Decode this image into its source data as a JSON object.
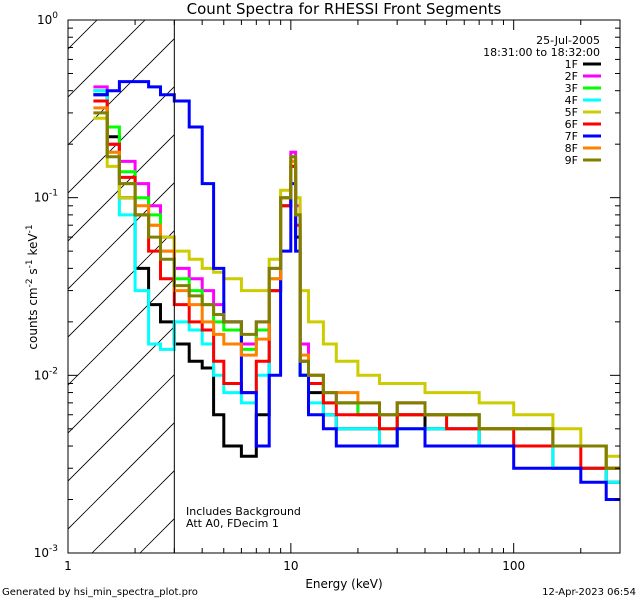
{
  "chart_data": {
    "type": "line",
    "title": "Count Spectra for RHESSI Front Segments",
    "date": "25-Jul-2005",
    "time_range": "18:31:00 to 18:32:00",
    "xlabel": "Energy (keV)",
    "ylabel_parts": {
      "a": "counts cm",
      "b": "-2",
      "c": " s",
      "d": "-1",
      "e": " keV",
      "f": "-1"
    },
    "x_scale": "log",
    "y_scale": "log",
    "xlim": [
      1,
      300
    ],
    "ylim": [
      0.001,
      1
    ],
    "x_ticks": [
      {
        "v": 1,
        "label": "1"
      },
      {
        "v": 10,
        "label": "10"
      },
      {
        "v": 100,
        "label": "100"
      }
    ],
    "y_ticks": [
      {
        "v": 1,
        "label": "10",
        "exp": "0"
      },
      {
        "v": 0.1,
        "label": "10",
        "exp": "-1"
      },
      {
        "v": 0.01,
        "label": "10",
        "exp": "-2"
      },
      {
        "v": 0.001,
        "label": "10",
        "exp": "-3"
      }
    ],
    "hatch_region_upper_keV": 3,
    "annotation_line1": "Includes Background",
    "annotation_line2": "Att A0, FDecim 1",
    "energy": [
      1.3,
      1.5,
      1.7,
      2.0,
      2.3,
      2.6,
      3.0,
      3.5,
      4.0,
      4.5,
      5.0,
      6.0,
      7.0,
      8.0,
      9.0,
      10.0,
      10.5,
      11.0,
      12.0,
      14.0,
      16.0,
      20.0,
      25.0,
      30.0,
      40.0,
      50.0,
      70.0,
      100.0,
      150.0,
      200.0,
      260.0
    ],
    "series": [
      {
        "name": "1F",
        "color": "#000000",
        "values": [
          0.38,
          0.22,
          0.1,
          0.04,
          0.025,
          0.02,
          0.015,
          0.012,
          0.011,
          0.006,
          0.004,
          0.0035,
          0.006,
          0.03,
          0.09,
          0.15,
          0.06,
          0.01,
          0.008,
          0.006,
          0.005,
          0.005,
          0.004,
          0.006,
          0.005,
          0.005,
          0.004,
          0.004,
          0.003,
          0.003,
          0.0025
        ]
      },
      {
        "name": "2F",
        "color": "#ff00ff",
        "values": [
          0.42,
          0.2,
          0.16,
          0.12,
          0.09,
          0.06,
          0.04,
          0.035,
          0.03,
          0.025,
          0.02,
          0.015,
          0.02,
          0.04,
          0.1,
          0.18,
          0.09,
          0.015,
          0.01,
          0.008,
          0.007,
          0.006,
          0.006,
          0.007,
          0.006,
          0.006,
          0.005,
          0.005,
          0.004,
          0.004,
          0.003
        ]
      },
      {
        "name": "3F",
        "color": "#00ff00",
        "values": [
          0.4,
          0.25,
          0.14,
          0.1,
          0.08,
          0.05,
          0.035,
          0.03,
          0.025,
          0.02,
          0.018,
          0.014,
          0.018,
          0.035,
          0.1,
          0.16,
          0.08,
          0.012,
          0.009,
          0.007,
          0.007,
          0.006,
          0.005,
          0.006,
          0.006,
          0.006,
          0.005,
          0.005,
          0.004,
          0.004,
          0.003
        ]
      },
      {
        "name": "4F",
        "color": "#00ffff",
        "values": [
          0.4,
          0.18,
          0.08,
          0.03,
          0.015,
          0.014,
          0.02,
          0.018,
          0.015,
          0.01,
          0.008,
          0.007,
          0.01,
          0.03,
          0.09,
          0.15,
          0.07,
          0.01,
          0.007,
          0.006,
          0.005,
          0.005,
          0.004,
          0.005,
          0.005,
          0.005,
          0.004,
          0.004,
          0.003,
          0.003,
          0.0025
        ]
      },
      {
        "name": "5F",
        "color": "#cccc00",
        "values": [
          0.28,
          0.15,
          0.1,
          0.08,
          0.07,
          0.06,
          0.05,
          0.045,
          0.04,
          0.038,
          0.035,
          0.03,
          0.03,
          0.045,
          0.11,
          0.17,
          0.1,
          0.03,
          0.02,
          0.015,
          0.012,
          0.01,
          0.009,
          0.009,
          0.008,
          0.008,
          0.007,
          0.006,
          0.005,
          0.004,
          0.0035
        ]
      },
      {
        "name": "6F",
        "color": "#ff0000",
        "values": [
          0.35,
          0.2,
          0.13,
          0.08,
          0.05,
          0.035,
          0.025,
          0.02,
          0.018,
          0.012,
          0.009,
          0.008,
          0.012,
          0.03,
          0.09,
          0.15,
          0.07,
          0.012,
          0.009,
          0.007,
          0.006,
          0.006,
          0.005,
          0.006,
          0.006,
          0.005,
          0.005,
          0.004,
          0.004,
          0.003,
          0.003
        ]
      },
      {
        "name": "7F",
        "color": "#0000ff",
        "values": [
          0.38,
          0.4,
          0.45,
          0.45,
          0.42,
          0.38,
          0.35,
          0.25,
          0.12,
          0.04,
          0.02,
          0.008,
          0.004,
          0.01,
          0.05,
          0.12,
          0.05,
          0.01,
          0.006,
          0.005,
          0.004,
          0.004,
          0.004,
          0.005,
          0.004,
          0.004,
          0.004,
          0.003,
          0.003,
          0.0025,
          0.002
        ]
      },
      {
        "name": "8F",
        "color": "#ff8000",
        "values": [
          0.32,
          0.18,
          0.12,
          0.09,
          0.07,
          0.05,
          0.03,
          0.025,
          0.02,
          0.017,
          0.015,
          0.013,
          0.016,
          0.035,
          0.1,
          0.16,
          0.08,
          0.013,
          0.01,
          0.008,
          0.008,
          0.007,
          0.006,
          0.007,
          0.006,
          0.006,
          0.005,
          0.005,
          0.004,
          0.004,
          0.003
        ]
      },
      {
        "name": "9F",
        "color": "#808000",
        "values": [
          0.3,
          0.17,
          0.12,
          0.08,
          0.06,
          0.045,
          0.032,
          0.028,
          0.025,
          0.022,
          0.02,
          0.017,
          0.02,
          0.04,
          0.1,
          0.17,
          0.08,
          0.012,
          0.01,
          0.008,
          0.007,
          0.007,
          0.006,
          0.007,
          0.006,
          0.006,
          0.005,
          0.005,
          0.004,
          0.004,
          0.003
        ]
      }
    ]
  },
  "footer": {
    "left": "Generated by hsi_min_spectra_plot.pro",
    "right": "12-Apr-2023 06:54"
  }
}
